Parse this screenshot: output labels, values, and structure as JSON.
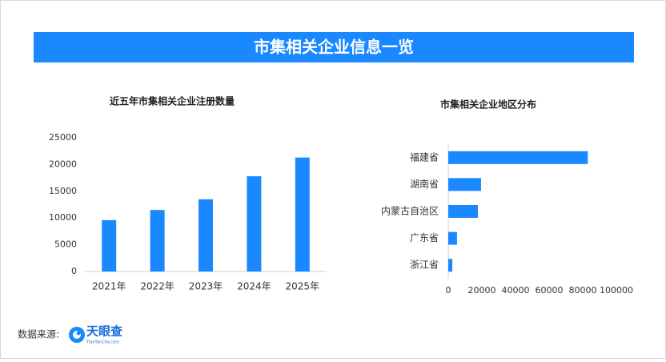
{
  "header": {
    "title": "市集相关企业信息一览"
  },
  "chart_data": [
    {
      "type": "bar",
      "title": "近五年市集相关企业注册数量",
      "categories": [
        "2021年",
        "2022年",
        "2023年",
        "2024年",
        "2025年"
      ],
      "values": [
        9600,
        11500,
        13500,
        17800,
        21300
      ],
      "color": "#1a88ff",
      "ylim": [
        0,
        25000
      ],
      "yticks": [
        0,
        5000,
        10000,
        15000,
        20000,
        25000
      ],
      "grid": false
    },
    {
      "type": "barh",
      "title": "市集相关企业地区分布",
      "categories": [
        "福建省",
        "湖南省",
        "内蒙古自治区",
        "广东省",
        "浙江省"
      ],
      "values": [
        83000,
        19500,
        17600,
        5200,
        2400
      ],
      "color": "#1a88ff",
      "xlim": [
        0,
        100000
      ],
      "xticks": [
        0,
        20000,
        40000,
        60000,
        80000,
        100000
      ],
      "grid": false
    }
  ],
  "footer": {
    "source_label": "数据来源:",
    "logo_text": "天眼查",
    "logo_subtext": "TianYanCha.com"
  }
}
